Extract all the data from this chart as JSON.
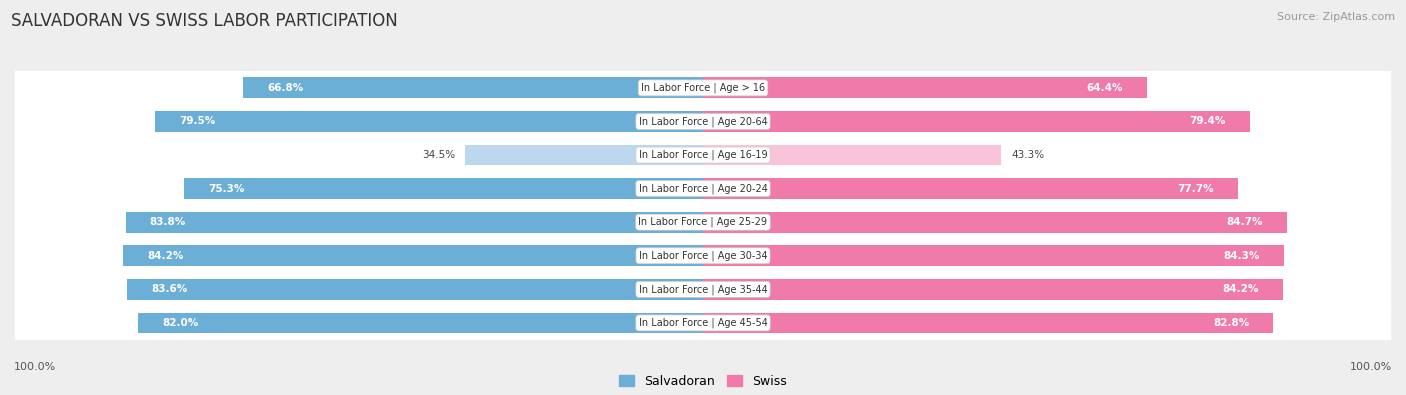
{
  "title": "SALVADORAN VS SWISS LABOR PARTICIPATION",
  "source": "Source: ZipAtlas.com",
  "categories": [
    "In Labor Force | Age > 16",
    "In Labor Force | Age 20-64",
    "In Labor Force | Age 16-19",
    "In Labor Force | Age 20-24",
    "In Labor Force | Age 25-29",
    "In Labor Force | Age 30-34",
    "In Labor Force | Age 35-44",
    "In Labor Force | Age 45-54"
  ],
  "salvadoran": [
    66.8,
    79.5,
    34.5,
    75.3,
    83.8,
    84.2,
    83.6,
    82.0
  ],
  "swiss": [
    64.4,
    79.4,
    43.3,
    77.7,
    84.7,
    84.3,
    84.2,
    82.8
  ],
  "salvadoran_color": "#6baed6",
  "swiss_color": "#f07aaa",
  "salvadoran_light": "#bdd7ee",
  "swiss_light": "#f9c4d9",
  "bg_color": "#eeeeee",
  "max_val": 100.0,
  "bar_height": 0.62,
  "legend_salvadoran": "Salvadoran",
  "legend_swiss": "Swiss"
}
